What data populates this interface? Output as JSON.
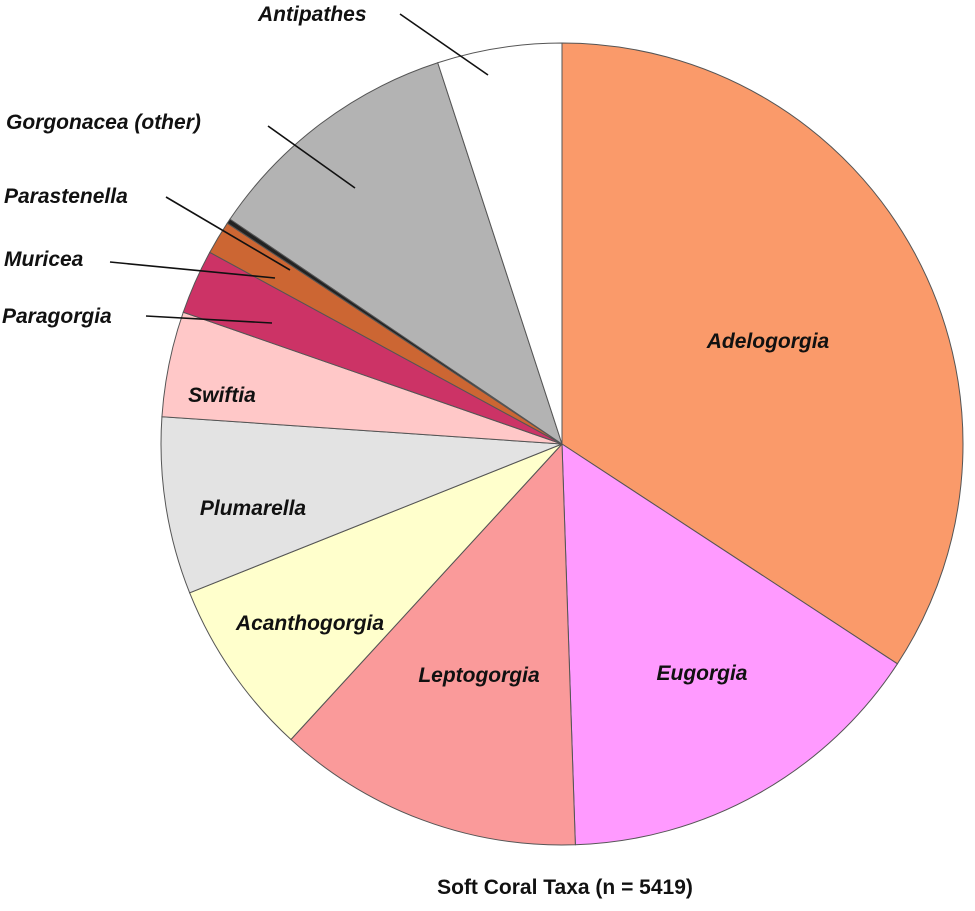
{
  "chart_data": {
    "type": "pie",
    "title": "Soft Coral Taxa (n = 5419)",
    "start": "12 o'clock",
    "direction": "clockwise",
    "slices": [
      {
        "label": "Adelogorgia",
        "value": 35.5,
        "color": "#FA9A6A"
      },
      {
        "label": "Eugorgia",
        "value": 15.8,
        "color": "#FF9AFF"
      },
      {
        "label": "Leptogorgia",
        "value": 12.8,
        "color": "#FA9A9A"
      },
      {
        "label": "Acanthogorgia",
        "value": 7.4,
        "color": "#FFFFCC"
      },
      {
        "label": "Plumarella",
        "value": 7.4,
        "color": "#E3E3E3"
      },
      {
        "label": "Swiftia",
        "value": 4.4,
        "color": "#FFC8C8"
      },
      {
        "label": "Paragorgia",
        "value": 2.7,
        "color": "#CC3366"
      },
      {
        "label": "Muricea",
        "value": 1.4,
        "color": "#CC6633"
      },
      {
        "label": "Parastenella",
        "value": 0.2,
        "color": "#222222"
      },
      {
        "label": "Gorgonacea (other)",
        "value": 10.9,
        "color": "#B3B3B3"
      },
      {
        "label": "Antipathes",
        "value": 5.2,
        "color": "#FFFFFF"
      }
    ]
  }
}
